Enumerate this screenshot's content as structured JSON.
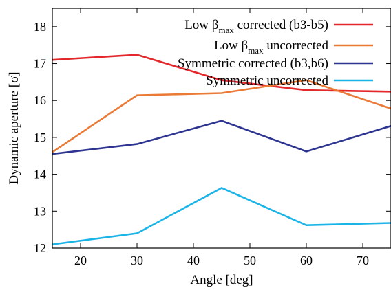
{
  "chart_data": {
    "type": "line",
    "xlabel": "Angle [deg]",
    "ylabel": "Dynamic aperture [σ]",
    "xlim": [
      15,
      75
    ],
    "ylim": [
      12,
      18.5
    ],
    "xticks": [
      20,
      30,
      40,
      50,
      60,
      70
    ],
    "yticks": [
      12,
      13,
      14,
      15,
      16,
      17,
      18
    ],
    "x": [
      15,
      30,
      45,
      60,
      75
    ],
    "grid": false,
    "legend_position": "top-right",
    "series": [
      {
        "name": "Low βmax corrected (b3-b5)",
        "legend_main": "Low β",
        "legend_sub": "max",
        "legend_rest": " corrected (b3-b5)",
        "color": "#e3272a",
        "values": [
          17.1,
          17.24,
          16.55,
          16.28,
          16.24
        ]
      },
      {
        "name": "Low βmax uncorrected",
        "legend_main": "Low β",
        "legend_sub": "max",
        "legend_rest": " uncorrected",
        "color": "#ea7a35",
        "values": [
          14.6,
          16.14,
          16.2,
          16.55,
          15.78
        ]
      },
      {
        "name": "Symmetric corrected (b3,b6)",
        "legend_main": "Symmetric corrected (b3,b6)",
        "legend_sub": "",
        "legend_rest": "",
        "color": "#2e3591",
        "values": [
          14.55,
          14.82,
          15.45,
          14.62,
          15.31
        ]
      },
      {
        "name": "Symmetric uncorrected",
        "legend_main": "Symmetric uncorrected",
        "legend_sub": "",
        "legend_rest": "",
        "color": "#1ab4e6",
        "values": [
          12.1,
          12.4,
          13.63,
          12.62,
          12.68
        ]
      }
    ]
  }
}
